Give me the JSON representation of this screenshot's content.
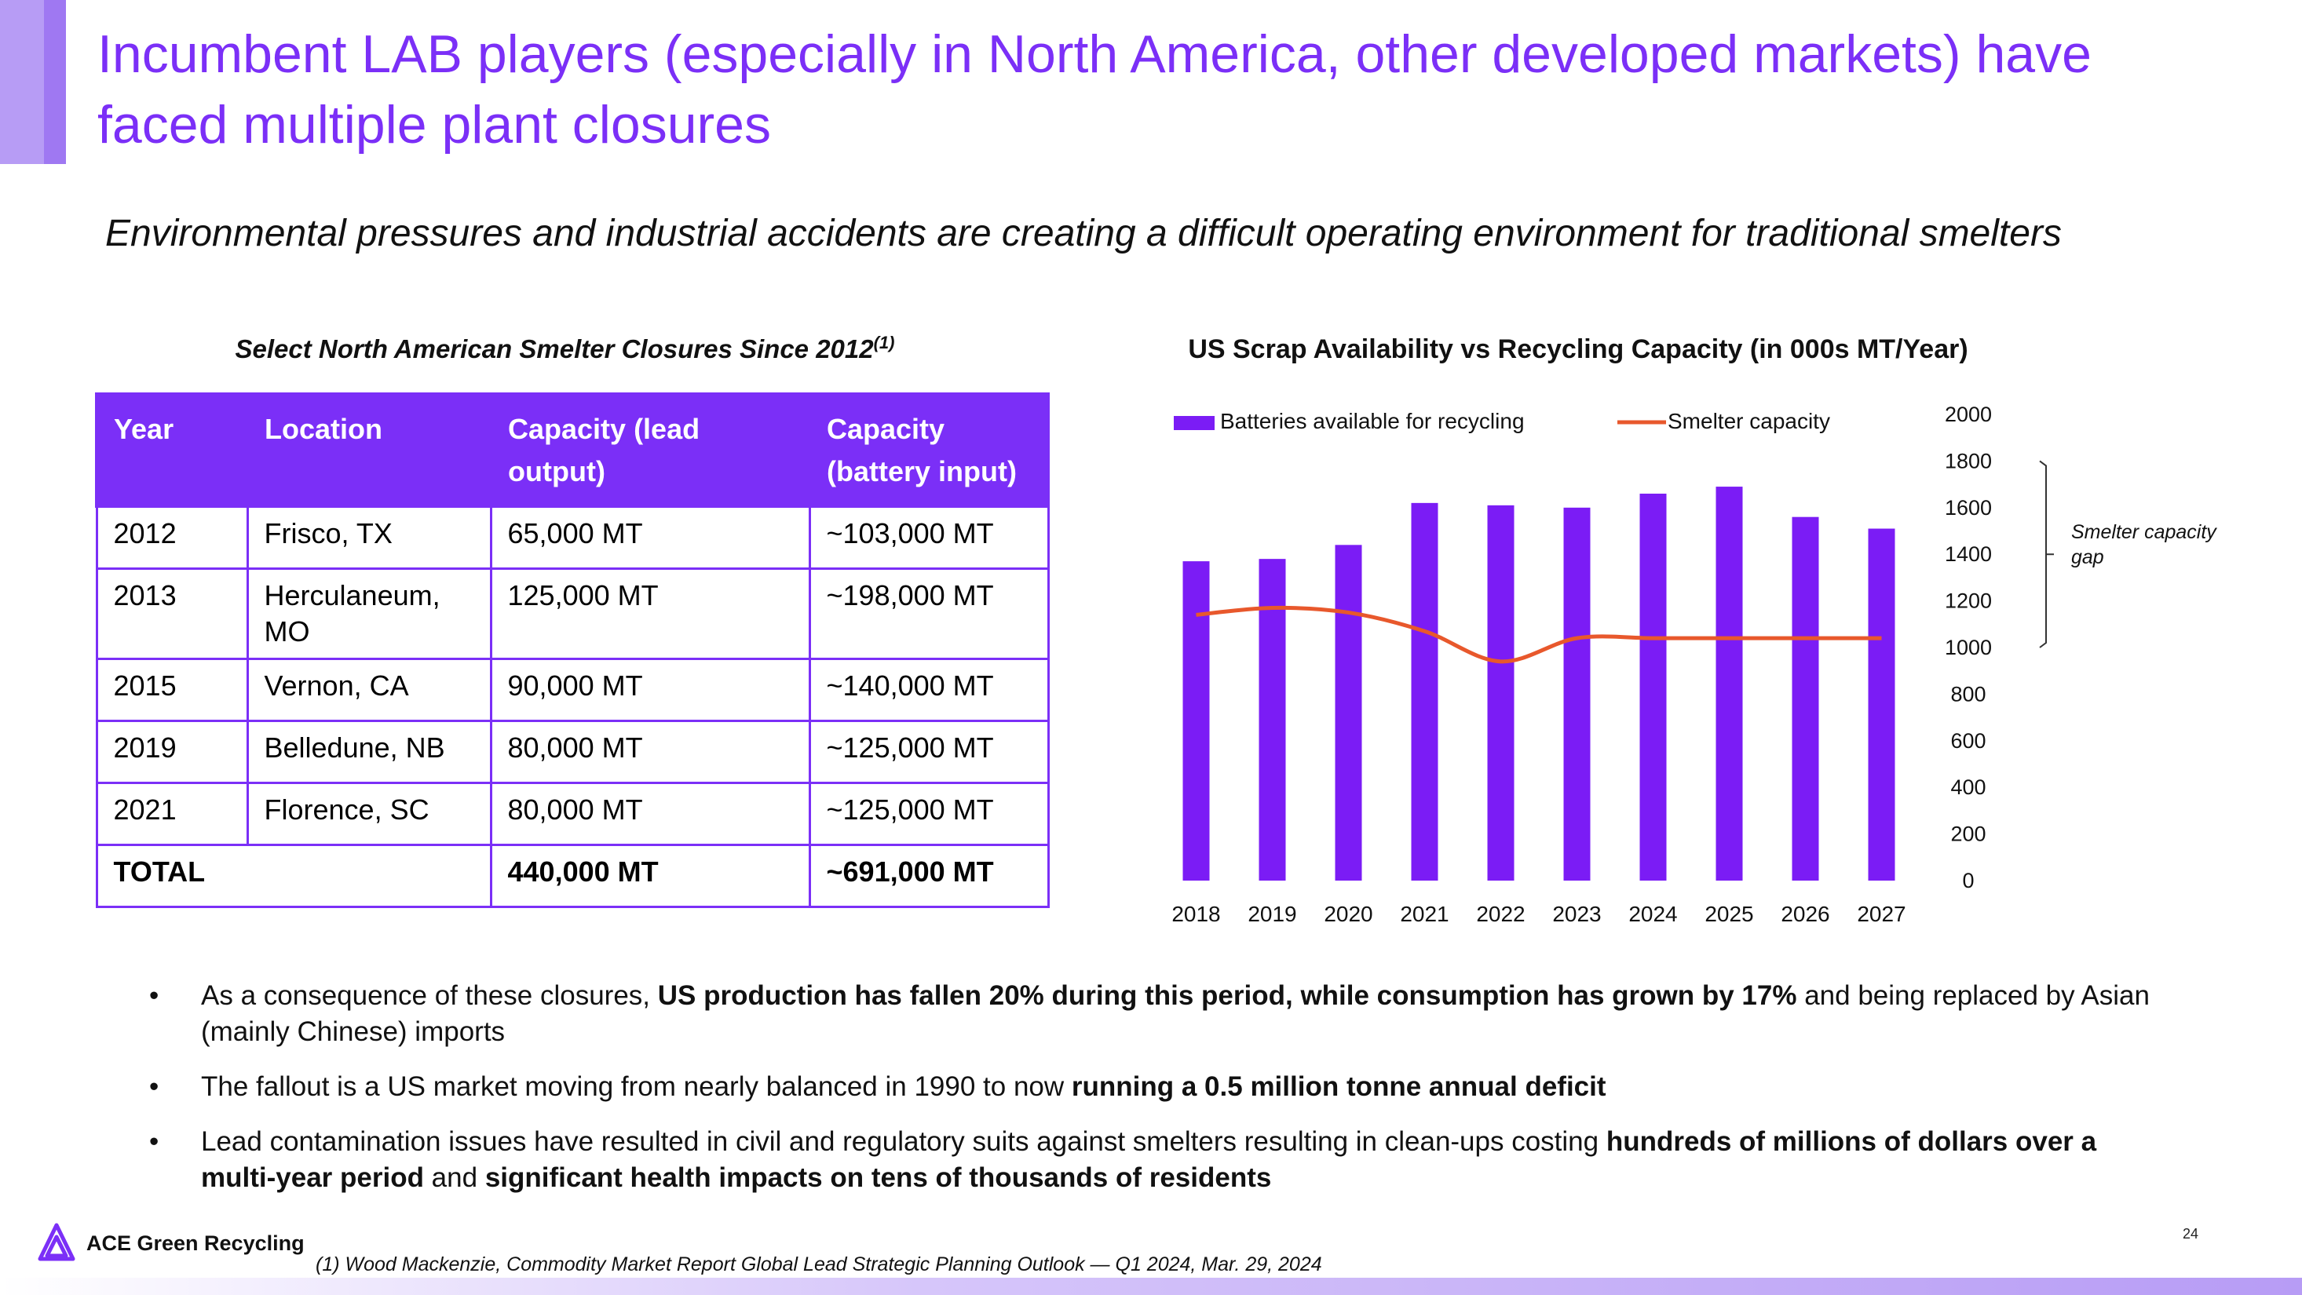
{
  "header": {
    "title": "Incumbent LAB players (especially in North America, other developed markets) have faced multiple plant closures",
    "subtitle": "Environmental pressures and industrial accidents are creating a difficult operating environment for traditional smelters"
  },
  "table": {
    "caption": "Select North American Smelter Closures Since 2012",
    "caption_sup": "(1)",
    "headers": [
      "Year",
      "Location",
      "Capacity (lead output)",
      "Capacity (battery input)"
    ],
    "rows": [
      [
        "2012",
        "Frisco, TX",
        "65,000 MT",
        "~103,000 MT"
      ],
      [
        "2013",
        "Herculaneum, MO",
        "125,000 MT",
        "~198,000 MT"
      ],
      [
        "2015",
        "Vernon, CA",
        "90,000 MT",
        "~140,000 MT"
      ],
      [
        "2019",
        "Belledune, NB",
        "80,000 MT",
        "~125,000 MT"
      ],
      [
        "2021",
        "Florence, SC",
        "80,000 MT",
        "~125,000 MT"
      ]
    ],
    "total": {
      "label": "TOTAL",
      "lead": "440,000 MT",
      "battery": "~691,000 MT"
    }
  },
  "chart_data": {
    "type": "bar",
    "title": "US Scrap Availability vs Recycling Capacity (in 000s MT/Year)",
    "categories": [
      "2018",
      "2019",
      "2020",
      "2021",
      "2022",
      "2023",
      "2024",
      "2025",
      "2026",
      "2027"
    ],
    "series": [
      {
        "name": "Batteries available for recycling",
        "type": "bar",
        "values": [
          1370,
          1380,
          1440,
          1620,
          1610,
          1600,
          1660,
          1690,
          1560,
          1510
        ]
      },
      {
        "name": "Smelter capacity",
        "type": "line",
        "values": [
          1140,
          1170,
          1150,
          1070,
          940,
          1040,
          1040,
          1040,
          1040,
          1040
        ]
      }
    ],
    "yticks": [
      "0",
      "200",
      "400",
      "600",
      "800",
      "1000",
      "1200",
      "1400",
      "1600",
      "1800",
      "2000"
    ],
    "ylim": [
      0,
      2000
    ],
    "y_axis_side": "right",
    "legend_position": "top",
    "annotation": "Smelter capacity gap",
    "colors": {
      "bar": "#7b1cf5",
      "line": "#e8582c"
    }
  },
  "bullets": [
    {
      "segments": [
        {
          "text": "As a consequence of these closures, ",
          "bold": false
        },
        {
          "text": "US production has fallen 20% during this period, while consumption has grown by 17%",
          "bold": true
        },
        {
          "text": " and being replaced by Asian (mainly Chinese) imports",
          "bold": false
        }
      ]
    },
    {
      "segments": [
        {
          "text": "The fallout is a US market moving from nearly balanced in 1990 to now ",
          "bold": false
        },
        {
          "text": "running a 0.5 million tonne annual deficit",
          "bold": true
        }
      ]
    },
    {
      "segments": [
        {
          "text": "Lead contamination issues have resulted in civil and regulatory suits against smelters resulting in clean-ups costing ",
          "bold": false
        },
        {
          "text": "hundreds of millions of dollars over a multi-year period",
          "bold": true
        },
        {
          "text": " and ",
          "bold": false
        },
        {
          "text": "significant health impacts on tens of thousands of residents",
          "bold": true
        }
      ]
    }
  ],
  "footer": {
    "logo_text": "ACE Green Recycling",
    "page_number": "24",
    "footnote": "(1) Wood Mackenzie, Commodity Market Report Global Lead Strategic Planning Outlook — Q1 2024, Mar. 29, 2024"
  }
}
